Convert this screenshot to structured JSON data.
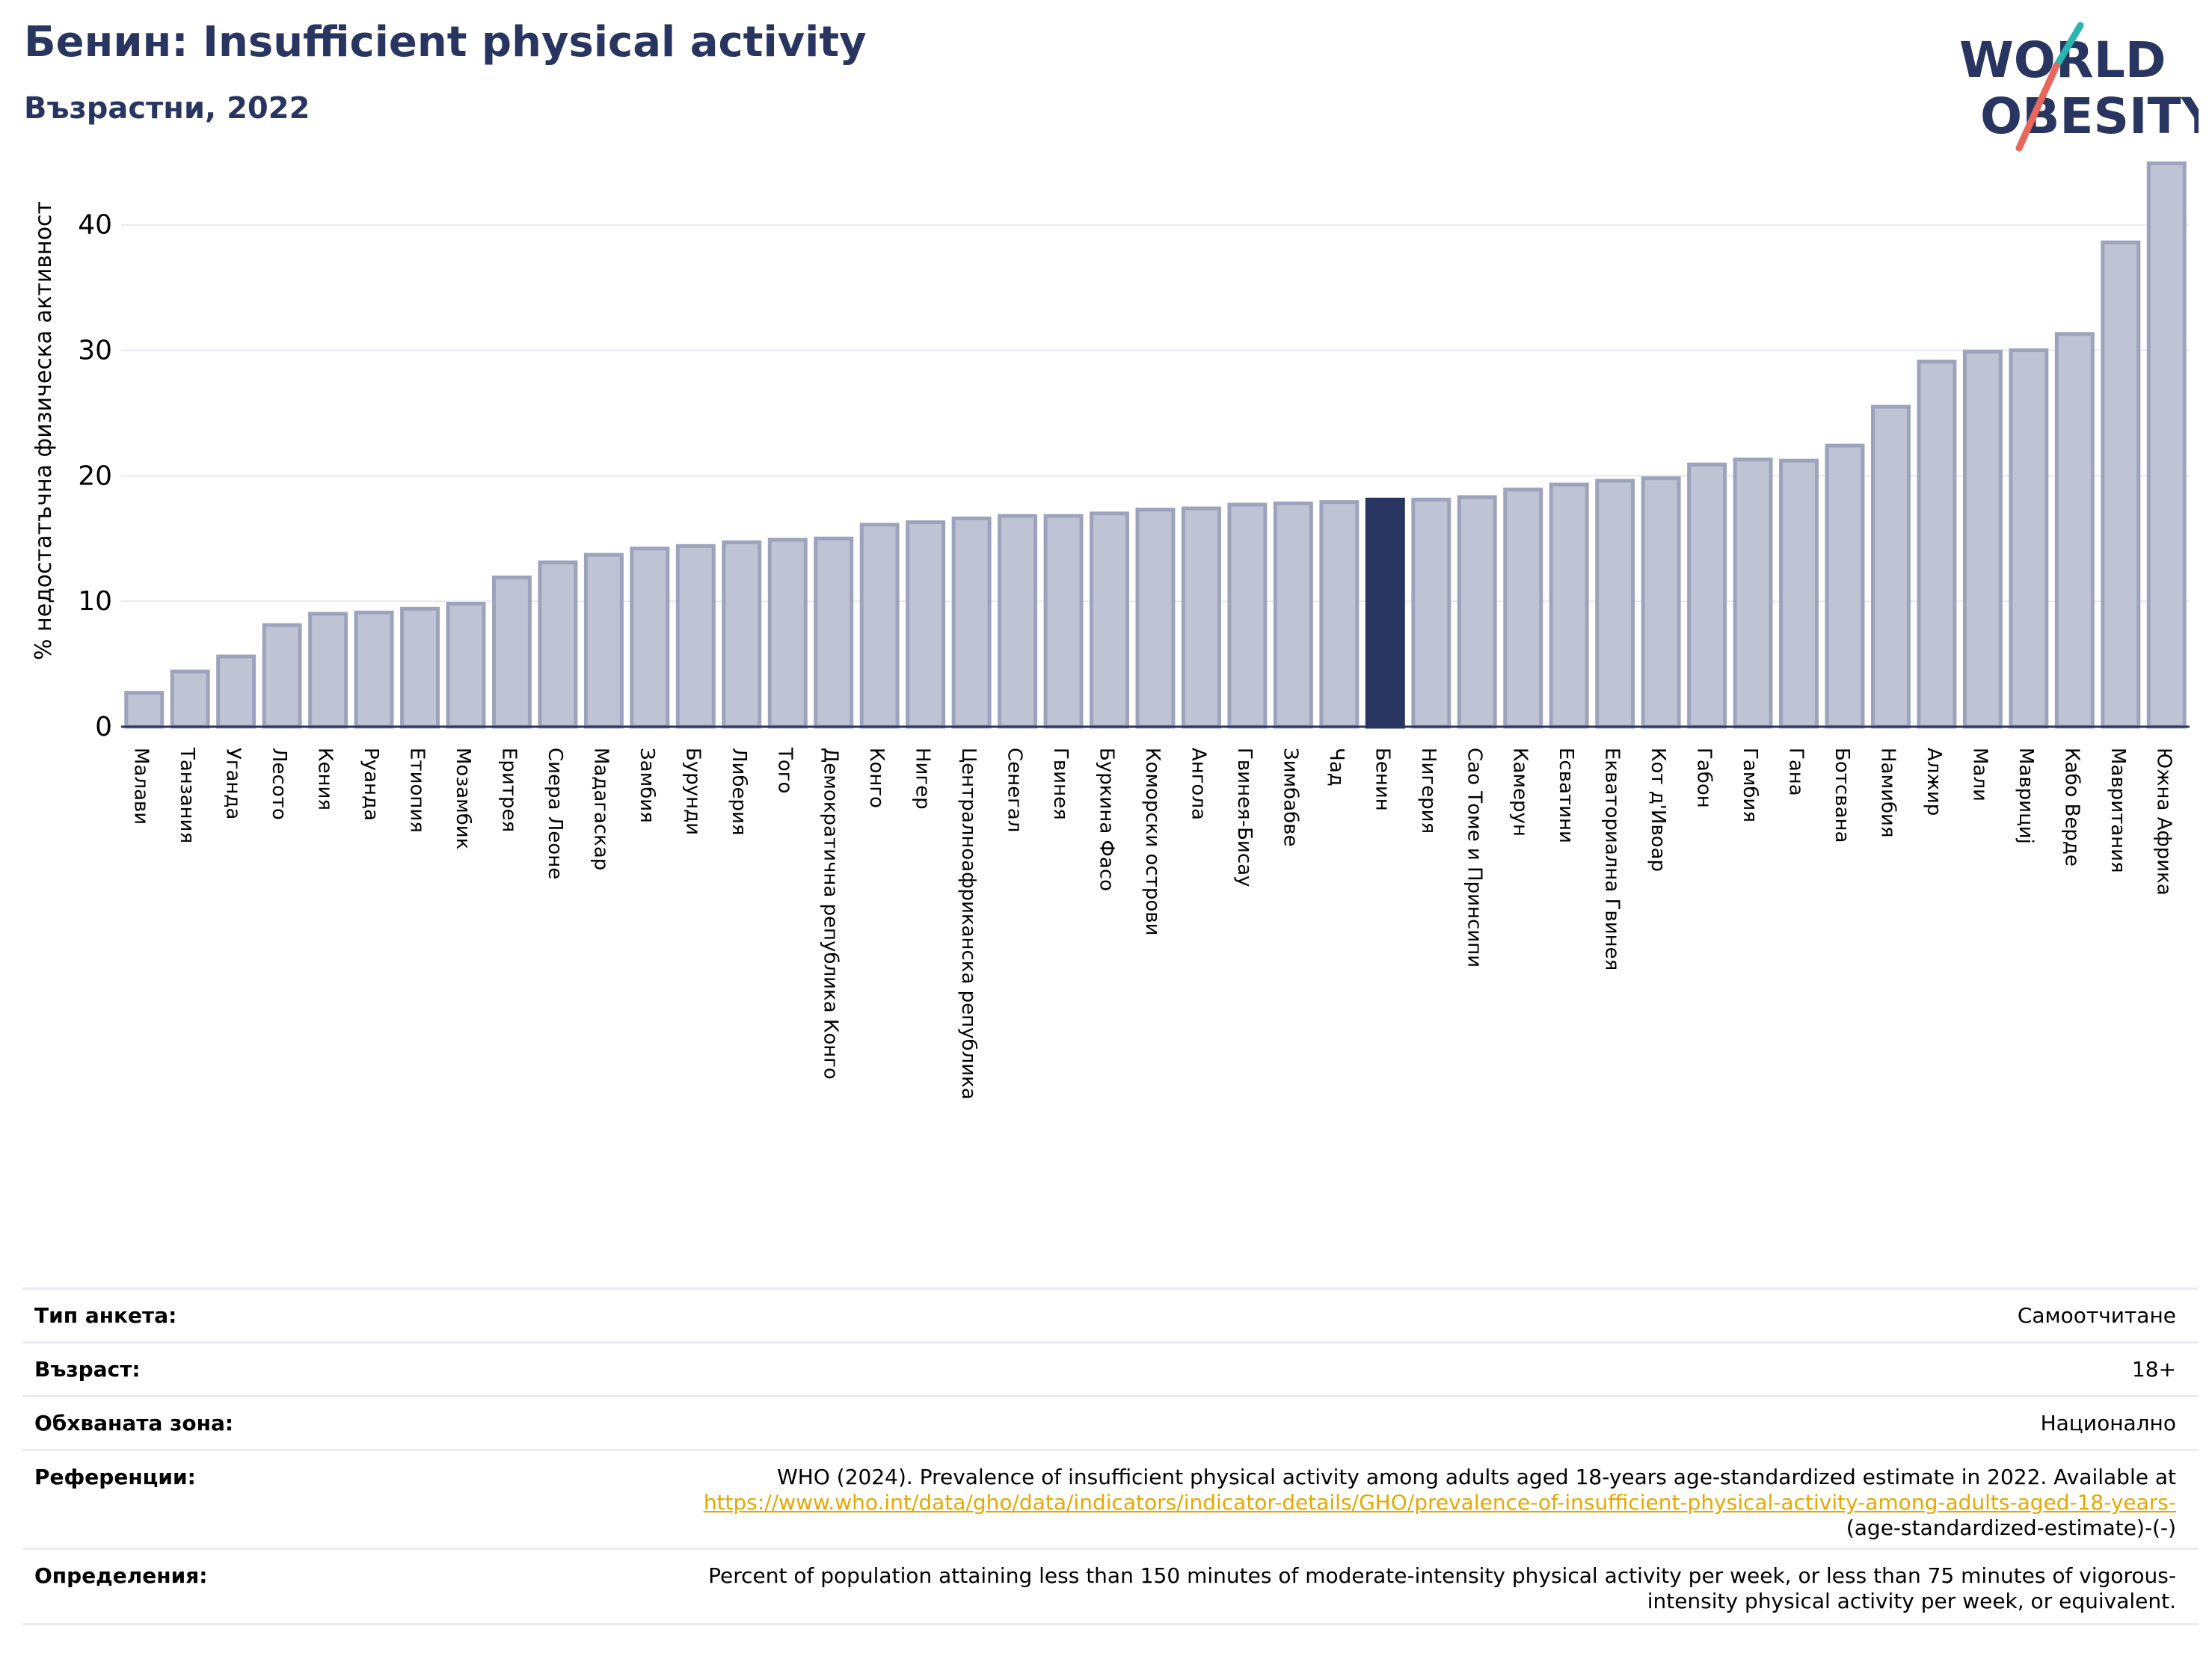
{
  "header": {
    "title": "Бенин: Insufficient physical activity",
    "subtitle": "Възрастни, 2022"
  },
  "logo": {
    "line1": "WORLD",
    "line2": "OBESITY",
    "accent_teal": "#2bb5b0",
    "accent_red": "#e8675a",
    "color": "#283560"
  },
  "colors": {
    "bar": "#bfc3d3",
    "bar_edge": "#9da3bc",
    "highlight": "#283560",
    "grid": "#e6e9f2",
    "axis": "#283560"
  },
  "chart_data": {
    "type": "bar",
    "title": "",
    "xlabel": "",
    "ylabel": "% недостатъчна физическа активност",
    "ylim": [
      0,
      46
    ],
    "yticks": [
      0,
      10,
      20,
      30,
      40
    ],
    "grid": true,
    "highlight": "Бенин",
    "categories": [
      "Малави",
      "Танзания",
      "Уганда",
      "Лесото",
      "Кения",
      "Руанда",
      "Етиопия",
      "Мозамбик",
      "Еритрея",
      "Сиера Леоне",
      "Мадагаскар",
      "Замбия",
      "Бурунди",
      "Либерия",
      "Того",
      "Демократична република Конго",
      "Конго",
      "Нигер",
      "Централноафриканска република",
      "Сенегал",
      "Гвинея",
      "Буркина Фасо",
      "Коморски острови",
      "Ангола",
      "Гвинея-Бисау",
      "Зимбабве",
      "Чад",
      "Бенин",
      "Нигерия",
      "Сао Томе и Принсипи",
      "Камерун",
      "Есватини",
      "Екваториална Гвинея",
      "Кот д'Ивоар",
      "Габон",
      "Гамбия",
      "Гана",
      "Ботсвана",
      "Намибия",
      "Алжир",
      "Мали",
      "Маврициј",
      "Кабо Верде",
      "Мавритания",
      "Южна Африка"
    ],
    "values": [
      2.7,
      4.4,
      5.6,
      8.1,
      9.0,
      9.1,
      9.4,
      9.8,
      11.9,
      13.1,
      13.7,
      14.2,
      14.4,
      14.7,
      14.9,
      15.0,
      16.1,
      16.3,
      16.6,
      16.8,
      16.8,
      17.0,
      17.3,
      17.4,
      17.7,
      17.8,
      17.9,
      18.1,
      18.1,
      18.3,
      18.9,
      19.3,
      19.6,
      19.8,
      20.9,
      21.3,
      21.2,
      22.4,
      25.5,
      29.1,
      29.9,
      30.0,
      31.3,
      38.6,
      44.9
    ]
  },
  "info": {
    "survey_label": "Тип анкета:",
    "survey_value": "Самоотчитане",
    "age_label": "Възраст:",
    "age_value": "18+",
    "area_label": "Обхваната зона:",
    "area_value": "Национално",
    "ref_label": "Референции:",
    "ref_text": "WHO (2024). Prevalence of insufficient physical activity among adults aged 18-years age-standardized estimate in 2022. Available at",
    "ref_link": "https://www.who.int/data/gho/data/indicators/indicator-details/GHO/prevalence-of-insufficient-physical-activity-among-adults-aged-18-years-",
    "ref_tail": "(age-standardized-estimate)-(-)",
    "def_label": "Определения:",
    "def_line1": "Percent of population attaining less than 150 minutes of moderate-intensity physical activity per week, or less than 75 minutes of vigorous-",
    "def_line2": "intensity physical activity per week, or equivalent."
  }
}
